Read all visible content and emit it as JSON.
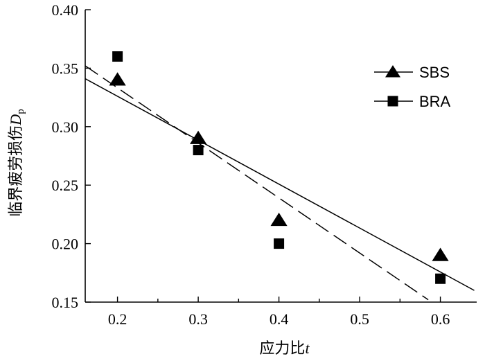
{
  "chart_data": {
    "type": "scatter",
    "xlabel": "应力比",
    "xlabel_var": "t",
    "ylabel": "临界疲劳损伤",
    "ylabel_var": "D",
    "ylabel_sub": "p",
    "xlim": [
      0.16,
      0.645
    ],
    "ylim": [
      0.15,
      0.4
    ],
    "xticks": [
      0.2,
      0.3,
      0.4,
      0.5,
      0.6
    ],
    "xtick_labels": [
      "0.2",
      "0.3",
      "0.4",
      "0.5",
      "0.6"
    ],
    "yticks": [
      0.15,
      0.2,
      0.25,
      0.3,
      0.35,
      0.4
    ],
    "ytick_labels": [
      "0.15",
      "0.20",
      "0.25",
      "0.30",
      "0.35",
      "0.40"
    ],
    "grid": false,
    "legend_position": "top-right",
    "series": [
      {
        "name": "SBS",
        "marker": "triangle",
        "line_style": "solid",
        "color": "#000000",
        "x": [
          0.2,
          0.3,
          0.4,
          0.6
        ],
        "y": [
          0.34,
          0.29,
          0.22,
          0.19
        ],
        "fit": {
          "x": [
            0.16,
            0.642
          ],
          "y": [
            0.341,
            0.16
          ]
        }
      },
      {
        "name": "BRA",
        "marker": "square",
        "line_style": "dashed",
        "color": "#000000",
        "x": [
          0.2,
          0.3,
          0.4,
          0.6
        ],
        "y": [
          0.36,
          0.28,
          0.2,
          0.17
        ],
        "fit": {
          "x": [
            0.16,
            0.585
          ],
          "y": [
            0.352,
            0.152
          ]
        }
      }
    ]
  }
}
